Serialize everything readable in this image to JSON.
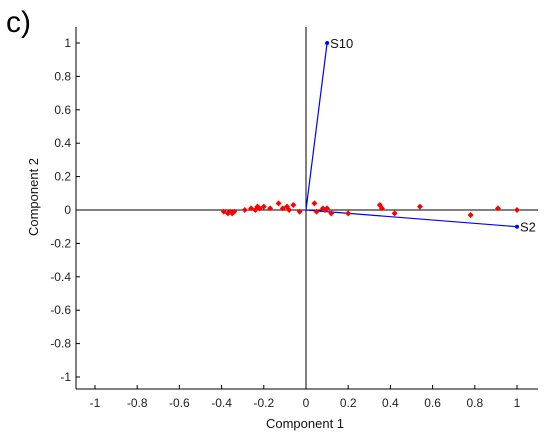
{
  "panel_label": "c)",
  "chart_data": {
    "type": "scatter",
    "xlabel": "Component 1",
    "ylabel": "Component 2",
    "xlim": [
      -1.05,
      1.1
    ],
    "ylim": [
      -1.1,
      1.1
    ],
    "xticks": [
      -1,
      -0.8,
      -0.6,
      -0.4,
      -0.2,
      0,
      0.2,
      0.4,
      0.6,
      0.8,
      1
    ],
    "xtick_labels": [
      "-1",
      "-0.8",
      "-0.6",
      "-0.4",
      "-0.2",
      "0",
      "0.2",
      "0.4",
      "0.6",
      "0.8",
      "1"
    ],
    "yticks": [
      -1,
      -0.8,
      -0.6,
      -0.4,
      -0.2,
      0,
      0.2,
      0.4,
      0.6,
      0.8,
      1
    ],
    "ytick_labels": [
      "-1",
      "-0.8",
      "-0.6",
      "-0.4",
      "-0.2",
      "0",
      "0.2",
      "0.4",
      "0.6",
      "0.8",
      "1"
    ],
    "grid": false,
    "colors": {
      "points": "#ff0000",
      "vectors": "#0000ff",
      "axes": "#000000"
    },
    "vectors": [
      {
        "label": "S10",
        "x": 0.1,
        "y": 1.0
      },
      {
        "label": "S2",
        "x": 1.0,
        "y": -0.1
      }
    ],
    "points": [
      {
        "x": -0.39,
        "y": -0.01
      },
      {
        "x": -0.37,
        "y": -0.02
      },
      {
        "x": -0.36,
        "y": -0.01
      },
      {
        "x": -0.35,
        "y": -0.02
      },
      {
        "x": -0.34,
        "y": -0.01
      },
      {
        "x": -0.29,
        "y": 0.0
      },
      {
        "x": -0.26,
        "y": 0.01
      },
      {
        "x": -0.24,
        "y": 0.0
      },
      {
        "x": -0.23,
        "y": 0.02
      },
      {
        "x": -0.22,
        "y": 0.01
      },
      {
        "x": -0.2,
        "y": 0.02
      },
      {
        "x": -0.17,
        "y": 0.01
      },
      {
        "x": -0.13,
        "y": 0.04
      },
      {
        "x": -0.11,
        "y": 0.01
      },
      {
        "x": -0.09,
        "y": 0.02
      },
      {
        "x": -0.08,
        "y": 0.0
      },
      {
        "x": -0.06,
        "y": 0.03
      },
      {
        "x": -0.03,
        "y": -0.01
      },
      {
        "x": 0.04,
        "y": 0.04
      },
      {
        "x": 0.05,
        "y": -0.01
      },
      {
        "x": 0.08,
        "y": 0.01
      },
      {
        "x": 0.09,
        "y": 0.0
      },
      {
        "x": 0.1,
        "y": 0.01
      },
      {
        "x": 0.12,
        "y": -0.02
      },
      {
        "x": 0.2,
        "y": -0.02
      },
      {
        "x": 0.35,
        "y": 0.03
      },
      {
        "x": 0.36,
        "y": 0.01
      },
      {
        "x": 0.42,
        "y": -0.02
      },
      {
        "x": 0.54,
        "y": 0.02
      },
      {
        "x": 0.78,
        "y": -0.03
      },
      {
        "x": 0.91,
        "y": 0.01
      },
      {
        "x": 1.0,
        "y": 0.0
      }
    ]
  }
}
